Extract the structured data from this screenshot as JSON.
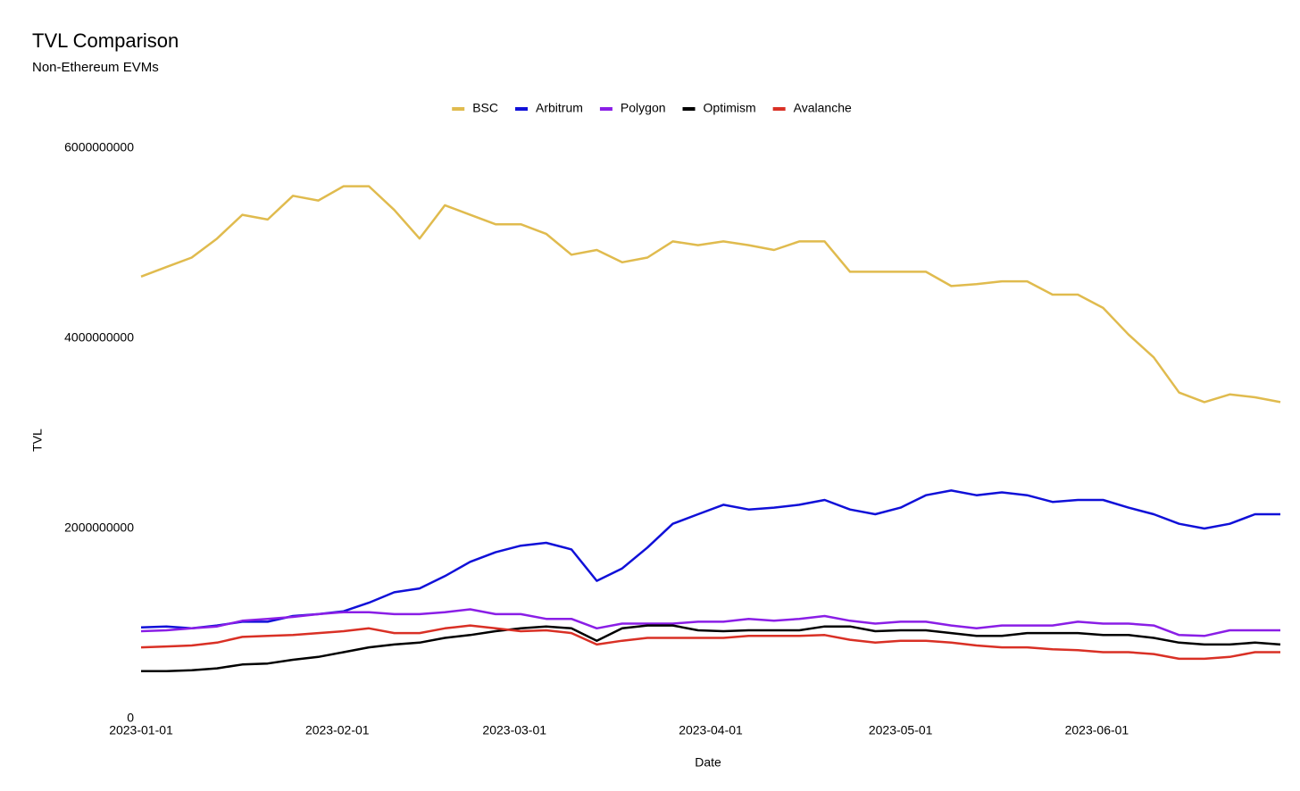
{
  "chart_data": {
    "type": "line",
    "title": "TVL Comparison",
    "subtitle": "Non-Ethereum EVMs",
    "x_label": "Date",
    "y_label": "TVL",
    "legend": "top",
    "grid": false,
    "x": [
      "2023-01-01",
      "2023-01-05",
      "2023-01-09",
      "2023-01-13",
      "2023-01-17",
      "2023-01-21",
      "2023-01-25",
      "2023-01-29",
      "2023-02-02",
      "2023-02-06",
      "2023-02-10",
      "2023-02-14",
      "2023-02-18",
      "2023-02-22",
      "2023-02-26",
      "2023-03-02",
      "2023-03-06",
      "2023-03-10",
      "2023-03-14",
      "2023-03-18",
      "2023-03-22",
      "2023-03-26",
      "2023-03-30",
      "2023-04-03",
      "2023-04-07",
      "2023-04-11",
      "2023-04-15",
      "2023-04-19",
      "2023-04-23",
      "2023-04-27",
      "2023-05-01",
      "2023-05-05",
      "2023-05-09",
      "2023-05-13",
      "2023-05-17",
      "2023-05-21",
      "2023-05-25",
      "2023-05-29",
      "2023-06-02",
      "2023-06-06",
      "2023-06-10",
      "2023-06-14",
      "2023-06-18",
      "2023-06-22",
      "2023-06-26",
      "2023-06-30"
    ],
    "xlim": [
      "2023-01-01",
      "2023-06-30"
    ],
    "xticks": [
      "2023-01-01",
      "2023-02-01",
      "2023-03-01",
      "2023-04-01",
      "2023-05-01",
      "2023-06-01"
    ],
    "ylim": [
      0,
      6000000000
    ],
    "yticks": [
      0,
      2000000000,
      4000000000,
      6000000000
    ],
    "series": [
      {
        "name": "BSC",
        "color": "#e0bb4e",
        "values": [
          4650000000,
          4750000000,
          4850000000,
          5050000000,
          5300000000,
          5250000000,
          5500000000,
          5450000000,
          5600000000,
          5600000000,
          5350000000,
          5050000000,
          5400000000,
          5300000000,
          5200000000,
          5200000000,
          5100000000,
          4880000000,
          4930000000,
          4800000000,
          4850000000,
          5020000000,
          4980000000,
          5020000000,
          4980000000,
          4930000000,
          5020000000,
          5020000000,
          4700000000,
          4700000000,
          4700000000,
          4700000000,
          4550000000,
          4570000000,
          4600000000,
          4600000000,
          4460000000,
          4460000000,
          4320000000,
          4040000000,
          3800000000,
          3430000000,
          3330000000,
          3410000000,
          3380000000,
          3330000000
        ]
      },
      {
        "name": "Arbitrum",
        "color": "#1010d8",
        "values": [
          960000000,
          970000000,
          950000000,
          980000000,
          1020000000,
          1020000000,
          1080000000,
          1100000000,
          1130000000,
          1220000000,
          1330000000,
          1370000000,
          1500000000,
          1650000000,
          1750000000,
          1820000000,
          1850000000,
          1780000000,
          1450000000,
          1580000000,
          1800000000,
          2050000000,
          2150000000,
          2250000000,
          2200000000,
          2220000000,
          2250000000,
          2300000000,
          2200000000,
          2150000000,
          2220000000,
          2350000000,
          2400000000,
          2350000000,
          2380000000,
          2350000000,
          2280000000,
          2300000000,
          2300000000,
          2220000000,
          2150000000,
          2050000000,
          2000000000,
          2050000000,
          2150000000,
          2150000000
        ]
      },
      {
        "name": "Polygon",
        "color": "#8a1ee6",
        "values": [
          920000000,
          930000000,
          950000000,
          970000000,
          1030000000,
          1050000000,
          1070000000,
          1100000000,
          1120000000,
          1120000000,
          1100000000,
          1100000000,
          1120000000,
          1150000000,
          1100000000,
          1100000000,
          1050000000,
          1050000000,
          950000000,
          1000000000,
          1000000000,
          1000000000,
          1020000000,
          1020000000,
          1050000000,
          1030000000,
          1050000000,
          1080000000,
          1030000000,
          1000000000,
          1020000000,
          1020000000,
          980000000,
          950000000,
          980000000,
          980000000,
          980000000,
          1020000000,
          1000000000,
          1000000000,
          980000000,
          880000000,
          870000000,
          930000000,
          930000000,
          930000000
        ]
      },
      {
        "name": "Optimism",
        "color": "#000000",
        "values": [
          500000000,
          500000000,
          510000000,
          530000000,
          570000000,
          580000000,
          620000000,
          650000000,
          700000000,
          750000000,
          780000000,
          800000000,
          850000000,
          880000000,
          920000000,
          950000000,
          970000000,
          950000000,
          820000000,
          950000000,
          980000000,
          980000000,
          930000000,
          920000000,
          930000000,
          930000000,
          930000000,
          970000000,
          970000000,
          920000000,
          930000000,
          930000000,
          900000000,
          870000000,
          870000000,
          900000000,
          900000000,
          900000000,
          880000000,
          880000000,
          850000000,
          800000000,
          780000000,
          780000000,
          800000000,
          780000000
        ]
      },
      {
        "name": "Avalanche",
        "color": "#d93025",
        "values": [
          750000000,
          760000000,
          770000000,
          800000000,
          860000000,
          870000000,
          880000000,
          900000000,
          920000000,
          950000000,
          900000000,
          900000000,
          950000000,
          980000000,
          950000000,
          920000000,
          930000000,
          900000000,
          780000000,
          820000000,
          850000000,
          850000000,
          850000000,
          850000000,
          870000000,
          870000000,
          870000000,
          880000000,
          830000000,
          800000000,
          820000000,
          820000000,
          800000000,
          770000000,
          750000000,
          750000000,
          730000000,
          720000000,
          700000000,
          700000000,
          680000000,
          630000000,
          630000000,
          650000000,
          700000000,
          700000000
        ]
      }
    ]
  }
}
